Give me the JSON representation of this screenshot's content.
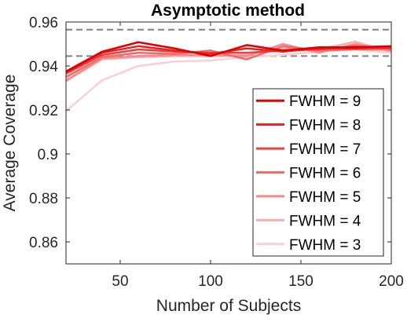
{
  "chart_data": {
    "type": "line",
    "title": "Asymptotic method",
    "xlabel": "Number of Subjects",
    "ylabel": "Average Coverage",
    "xlim": [
      20,
      200
    ],
    "ylim": [
      0.85,
      0.96
    ],
    "xticks": [
      50,
      100,
      150,
      200
    ],
    "yticks": [
      0.86,
      0.88,
      0.9,
      0.92,
      0.94,
      0.96
    ],
    "ytick_labels": [
      "0.86",
      "0.88",
      "0.9",
      "0.92",
      "0.94",
      "0.96"
    ],
    "grid": false,
    "legend_position": "bottom-right",
    "reference_lines": [
      0.9565,
      0.9445
    ],
    "reference_line_color": "#808080",
    "x": [
      20,
      40,
      60,
      80,
      100,
      120,
      140,
      160,
      180,
      200
    ],
    "series": [
      {
        "name": "FWHM = 9",
        "color": "#e00000",
        "values": [
          0.9375,
          0.9465,
          0.9508,
          0.948,
          0.9445,
          0.9495,
          0.947,
          0.9485,
          0.9485,
          0.949
        ]
      },
      {
        "name": "FWHM = 8",
        "color": "#e82020",
        "values": [
          0.937,
          0.946,
          0.949,
          0.947,
          0.9455,
          0.948,
          0.9465,
          0.948,
          0.948,
          0.9485
        ]
      },
      {
        "name": "FWHM = 7",
        "color": "#ec4040",
        "values": [
          0.9365,
          0.945,
          0.9475,
          0.9465,
          0.946,
          0.946,
          0.947,
          0.9475,
          0.949,
          0.948
        ]
      },
      {
        "name": "FWHM = 6",
        "color": "#ef6a6a",
        "values": [
          0.935,
          0.944,
          0.946,
          0.9455,
          0.947,
          0.943,
          0.949,
          0.947,
          0.9475,
          0.9475
        ]
      },
      {
        "name": "FWHM = 5",
        "color": "#f28c8c",
        "values": [
          0.9335,
          0.9435,
          0.9445,
          0.945,
          0.945,
          0.9445,
          0.95,
          0.946,
          0.95,
          0.947
        ]
      },
      {
        "name": "FWHM = 4",
        "color": "#f5aeae",
        "values": [
          0.933,
          0.943,
          0.944,
          0.9445,
          0.9445,
          0.945,
          0.948,
          0.9475,
          0.951,
          0.9465
        ]
      },
      {
        "name": "FWHM = 3",
        "color": "#f9cfcf",
        "values": [
          0.9195,
          0.9335,
          0.94,
          0.942,
          0.9425,
          0.944,
          0.945,
          0.9465,
          0.9475,
          0.946
        ]
      }
    ]
  }
}
